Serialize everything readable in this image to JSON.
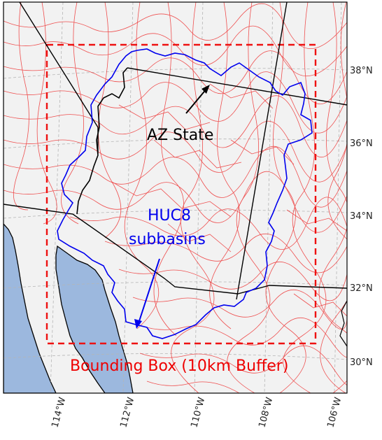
{
  "map": {
    "colors": {
      "land": "#f2f2f2",
      "ocean": "#9cb8de",
      "grid": "#b5b5b5",
      "state_border": "#000000",
      "huc8_lines": "#ee3333",
      "basin_outline": "#0000ee",
      "bbox": "#ee1111",
      "label_black": "#000000",
      "label_blue": "#0000ee",
      "label_red": "#ee0000"
    },
    "lat_ticks": [
      "38°N",
      "36°N",
      "34°N",
      "32°N",
      "30°N"
    ],
    "lon_ticks": [
      "114°W",
      "112°W",
      "110°W",
      "108°W",
      "106°W"
    ],
    "annotations": {
      "az_state": "AZ State",
      "huc8_line1": "HUC8",
      "huc8_line2": "subbasins",
      "bounding_box": "Bounding Box (10km Buffer)"
    }
  }
}
